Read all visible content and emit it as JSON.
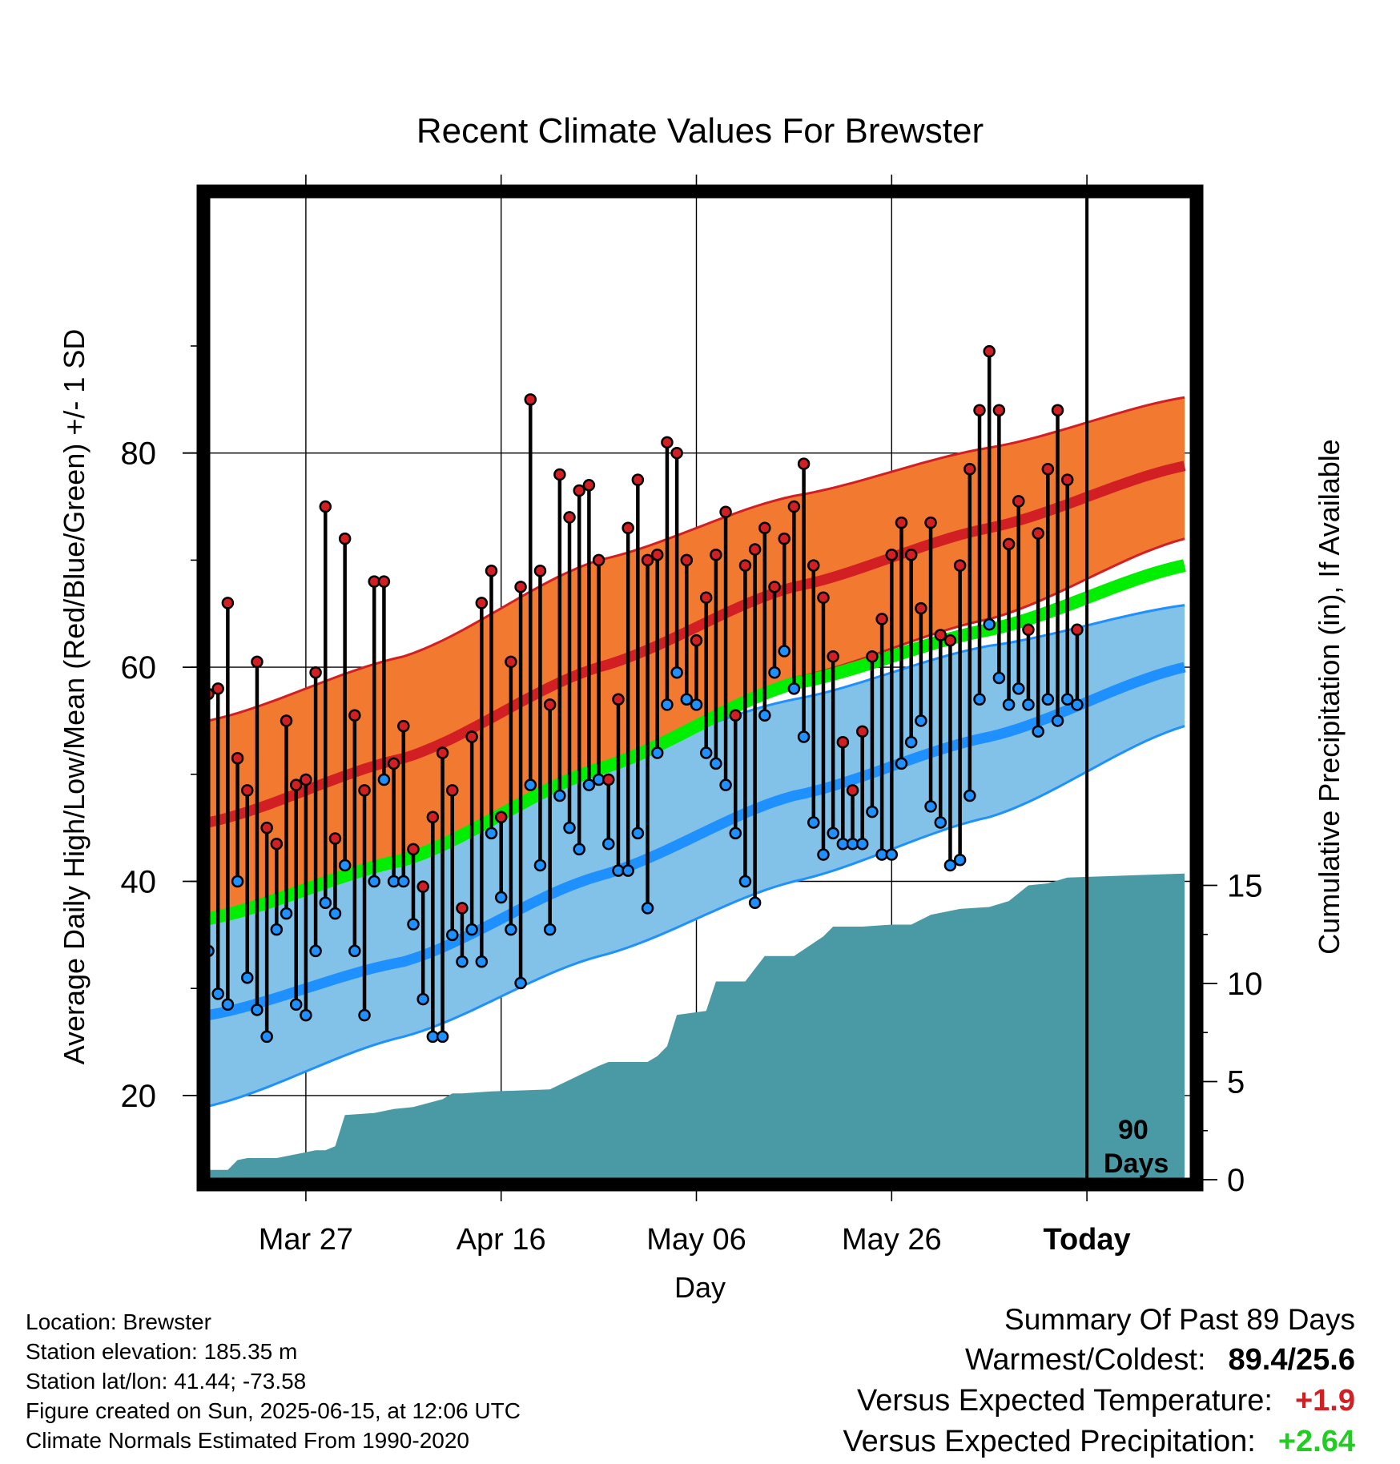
{
  "chart_data": {
    "type": "line",
    "title": "Recent Climate Values For Brewster",
    "xlabel": "Day",
    "ylabel": "Average Daily High/Low/Mean (Red/Blue/Green) +/- 1 SD",
    "y2label": "Cumulative Precipitation (in), If Available",
    "x_tick_labels": [
      "Mar 27",
      "Apr 16",
      "May 06",
      "May 26",
      "Today"
    ],
    "x_tick_days": [
      "2025-03-27",
      "2025-04-16",
      "2025-05-06",
      "2025-05-26",
      "2025-06-15"
    ],
    "x_start": "2025-03-17",
    "x_end": "2025-06-25",
    "ylim": [
      15,
      96
    ],
    "y_ticks": [
      20,
      40,
      60,
      80
    ],
    "y2lim": [
      0,
      29
    ],
    "y2_ticks": [
      0,
      5,
      10,
      15
    ],
    "today_marker_label_1": "90",
    "today_marker_label_2": "Days",
    "colors": {
      "high": "#d21f24",
      "high_band": "#f27a30",
      "low": "#1e90ff",
      "low_band": "#82c1e8",
      "mean": "#00ee00",
      "precip": "#4a9aa5",
      "frame": "#000000"
    },
    "normals": {
      "dates": [
        "2025-03-17",
        "2025-04-06",
        "2025-04-26",
        "2025-05-16",
        "2025-06-05",
        "2025-06-25"
      ],
      "high_mean": [
        45.5,
        51.5,
        60.0,
        67.5,
        73.0,
        78.8
      ],
      "high_upper": [
        55.0,
        61.0,
        70.0,
        76.0,
        80.5,
        85.2
      ],
      "high_lower": [
        37.0,
        42.0,
        50.5,
        59.0,
        64.5,
        72.0
      ],
      "mean_normal": [
        36.5,
        42.0,
        50.5,
        58.5,
        63.5,
        69.5
      ],
      "low_mean": [
        27.5,
        32.5,
        40.5,
        48.0,
        53.5,
        60.0
      ],
      "low_upper": [
        37.0,
        42.5,
        51.5,
        57.0,
        62.0,
        65.8
      ],
      "low_lower": [
        19.0,
        25.5,
        33.0,
        40.0,
        46.0,
        54.5
      ]
    },
    "series": [
      {
        "name": "High",
        "values": [
          57.5,
          58,
          66,
          51.5,
          48.5,
          60.5,
          45,
          43.5,
          55,
          49,
          49.5,
          59.5,
          75,
          44,
          72,
          55.5,
          48.5,
          68,
          68,
          51,
          54.5,
          43,
          39.5,
          46,
          52,
          48.5,
          37.5,
          53.5,
          66,
          69,
          46,
          60.5,
          67.5,
          85,
          69,
          56.5,
          78,
          74,
          76.5,
          77,
          70,
          49.5,
          57,
          73,
          77.5,
          70,
          70.5,
          81,
          80,
          70,
          62.5,
          66.5,
          70.5,
          74.5,
          55.5,
          69.5,
          71,
          73,
          67.5,
          72,
          75,
          79,
          69.5,
          66.5,
          61,
          53,
          48.5,
          54,
          61,
          64.5,
          70.5,
          73.5,
          70.5,
          65.5,
          73.5,
          63,
          62.5,
          69.5,
          78.5,
          84,
          89.5,
          84,
          71.5,
          75.5,
          63.5,
          72.5,
          78.5,
          84,
          77.5,
          63.5
        ]
      },
      {
        "name": "Low",
        "values": [
          33.5,
          29.5,
          28.5,
          40,
          31,
          28,
          25.5,
          35.5,
          37,
          28.5,
          27.5,
          33.5,
          38,
          37,
          41.5,
          33.5,
          27.5,
          40,
          49.5,
          40,
          40,
          36,
          29,
          25.5,
          25.5,
          35,
          32.5,
          35.5,
          32.5,
          44.5,
          38.5,
          35.5,
          30.5,
          49,
          41.5,
          35.5,
          48,
          45,
          43,
          49,
          49.5,
          43.5,
          41,
          41,
          44.5,
          37.5,
          52,
          56.5,
          59.5,
          57,
          56.5,
          52,
          51,
          49,
          44.5,
          40,
          38,
          55.5,
          59.5,
          61.5,
          58,
          53.5,
          45.5,
          42.5,
          44.5,
          43.5,
          43.5,
          43.5,
          46.5,
          42.5,
          42.5,
          51,
          53,
          55,
          47,
          45.5,
          41.5,
          42,
          48,
          57,
          64,
          59,
          56.5,
          58,
          56.5,
          54,
          57,
          55,
          57,
          56.5
        ]
      },
      {
        "name": "Cumulative Precipitation",
        "x": [
          "2025-03-17",
          "2025-03-19",
          "2025-03-20",
          "2025-03-21",
          "2025-03-24",
          "2025-03-28",
          "2025-03-29",
          "2025-03-30",
          "2025-03-31",
          "2025-04-03",
          "2025-04-05",
          "2025-04-07",
          "2025-04-10",
          "2025-04-11",
          "2025-04-12",
          "2025-04-15",
          "2025-04-21",
          "2025-04-26",
          "2025-04-27",
          "2025-05-01",
          "2025-05-02",
          "2025-05-03",
          "2025-05-04",
          "2025-05-07",
          "2025-05-08",
          "2025-05-11",
          "2025-05-13",
          "2025-05-16",
          "2025-05-19",
          "2025-05-20",
          "2025-05-23",
          "2025-05-26",
          "2025-05-28",
          "2025-05-30",
          "2025-06-02",
          "2025-06-05",
          "2025-06-07",
          "2025-06-09",
          "2025-06-11",
          "2025-06-13",
          "2025-06-25"
        ],
        "values": [
          0.5,
          0.5,
          1.0,
          1.1,
          1.1,
          1.5,
          1.5,
          1.7,
          3.3,
          3.4,
          3.6,
          3.7,
          4.1,
          4.4,
          4.4,
          4.5,
          4.6,
          5.8,
          6.0,
          6.0,
          6.3,
          6.8,
          8.4,
          8.6,
          10.1,
          10.1,
          11.4,
          11.4,
          12.4,
          12.9,
          12.9,
          13.0,
          13.0,
          13.5,
          13.8,
          13.9,
          14.2,
          15.0,
          15.1,
          15.4,
          15.6
        ]
      }
    ]
  },
  "footer": {
    "location": "Location: Brewster",
    "elevation": "Station elevation: 185.35 m",
    "latlon": "Station lat/lon: 41.44; -73.58",
    "created": "Figure created on Sun, 2025-06-15, at 12:06 UTC",
    "normals": "Climate Normals Estimated From 1990-2020"
  },
  "summary": {
    "heading": "Summary Of Past 89 Days",
    "warmest_label": "Warmest/Coldest:",
    "warmest_value": "89.4/25.6",
    "temp_label": "Versus Expected Temperature:",
    "temp_value": "+1.9",
    "temp_color": "#d21f24",
    "precip_label": "Versus Expected Precipitation:",
    "precip_value": "+2.64",
    "precip_color": "#22cc22"
  }
}
